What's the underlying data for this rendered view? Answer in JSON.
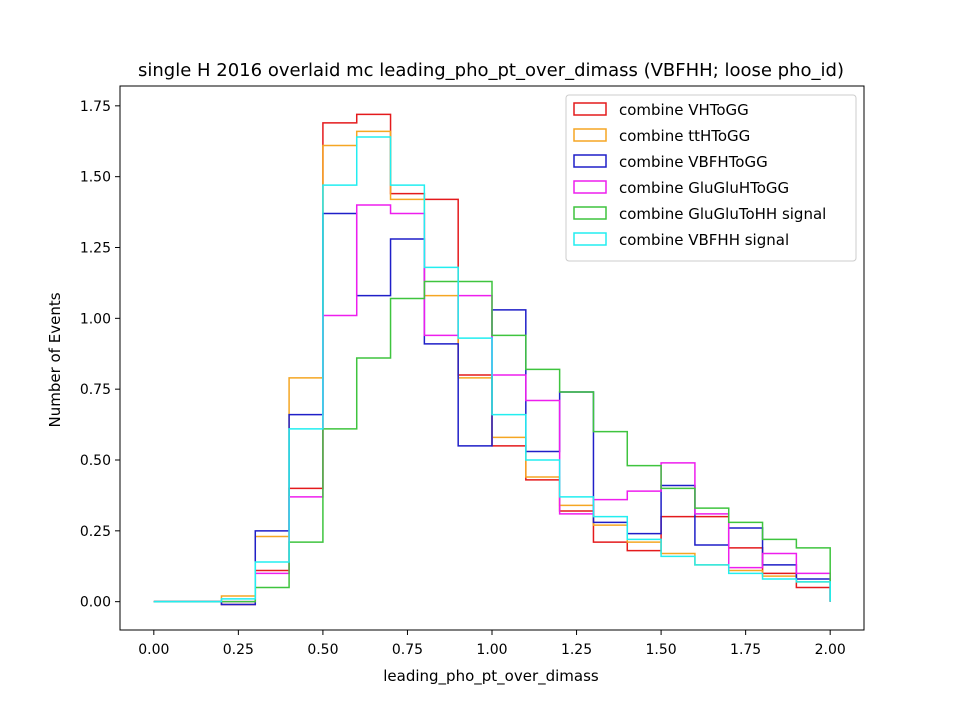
{
  "chart_data": {
    "type": "histogram-step",
    "title": "single H 2016 overlaid mc leading_pho_pt_over_dimass (VBFHH; loose pho_id)",
    "xlabel": "leading_pho_pt_over_dimass",
    "ylabel": "Number of Events",
    "xlim": [
      -0.1,
      2.1
    ],
    "ylim": [
      -0.1,
      1.82
    ],
    "xticks": [
      0.0,
      0.25,
      0.5,
      0.75,
      1.0,
      1.25,
      1.5,
      1.75,
      2.0
    ],
    "xtick_labels": [
      "0.00",
      "0.25",
      "0.50",
      "0.75",
      "1.00",
      "1.25",
      "1.50",
      "1.75",
      "2.00"
    ],
    "yticks": [
      0.0,
      0.25,
      0.5,
      0.75,
      1.0,
      1.25,
      1.5,
      1.75
    ],
    "ytick_labels": [
      "0.00",
      "0.25",
      "0.50",
      "0.75",
      "1.00",
      "1.25",
      "1.50",
      "1.75"
    ],
    "legend_position": "top-right",
    "bin_edges": [
      0.0,
      0.1,
      0.2,
      0.3,
      0.4,
      0.5,
      0.6,
      0.7,
      0.8,
      0.9,
      1.0,
      1.1,
      1.2,
      1.3,
      1.4,
      1.5,
      1.6,
      1.7,
      1.8,
      1.9,
      2.0
    ],
    "series": [
      {
        "name": "combine VHToGG",
        "color": "#e41a1c",
        "values": [
          0.0,
          0.0,
          -0.01,
          0.11,
          0.4,
          1.69,
          1.72,
          1.44,
          1.42,
          0.8,
          0.55,
          0.43,
          0.32,
          0.21,
          0.18,
          0.3,
          0.3,
          0.19,
          0.1,
          0.05
        ]
      },
      {
        "name": "combine ttHToGG",
        "color": "#f5a623",
        "values": [
          0.0,
          0.0,
          0.02,
          0.23,
          0.79,
          1.61,
          1.66,
          1.42,
          1.08,
          0.79,
          0.58,
          0.44,
          0.34,
          0.27,
          0.21,
          0.17,
          0.13,
          0.11,
          0.09,
          0.07
        ]
      },
      {
        "name": "combine VBFHToGG",
        "color": "#1f1fc8",
        "values": [
          0.0,
          0.0,
          -0.01,
          0.25,
          0.66,
          1.37,
          1.08,
          1.28,
          0.91,
          0.55,
          1.03,
          0.53,
          0.74,
          0.28,
          0.24,
          0.41,
          0.2,
          0.26,
          0.13,
          0.08
        ]
      },
      {
        "name": "combine GluGluHToGG",
        "color": "#ee1eee",
        "values": [
          0.0,
          0.0,
          0.0,
          0.1,
          0.37,
          1.01,
          1.4,
          1.37,
          0.94,
          1.08,
          0.8,
          0.71,
          0.31,
          0.36,
          0.39,
          0.49,
          0.31,
          0.12,
          0.17,
          0.1
        ]
      },
      {
        "name": "combine GluGluToHH signal",
        "color": "#3ec43e",
        "values": [
          0.0,
          0.0,
          0.0,
          0.05,
          0.21,
          0.61,
          0.86,
          1.07,
          1.13,
          1.13,
          0.94,
          0.82,
          0.74,
          0.6,
          0.48,
          0.4,
          0.33,
          0.28,
          0.22,
          0.19
        ]
      },
      {
        "name": "combine VBFHH signal",
        "color": "#22eef0",
        "values": [
          0.0,
          0.0,
          0.01,
          0.14,
          0.61,
          1.47,
          1.64,
          1.47,
          1.18,
          0.93,
          0.66,
          0.5,
          0.37,
          0.3,
          0.22,
          0.16,
          0.13,
          0.1,
          0.08,
          0.07
        ]
      }
    ]
  }
}
